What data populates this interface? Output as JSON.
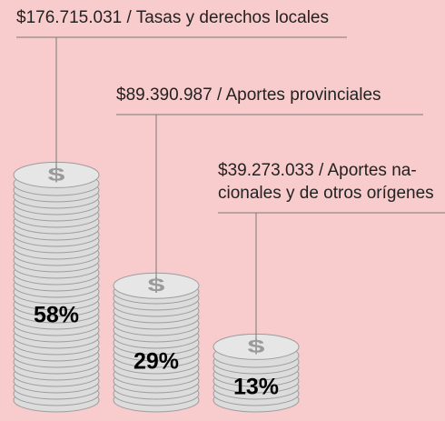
{
  "chart_data": {
    "type": "coin-stack",
    "categories": [
      [
        "$176.715.031  / Tasas y derechos locales"
      ],
      [
        "$89.390.987 / Aportes provinciales"
      ],
      [
        "$39.273.033 /  Aportes na-",
        "cionales y de otros orígenes"
      ]
    ],
    "values": [
      58,
      29,
      13
    ],
    "value_labels": [
      "58%",
      "29%",
      "13%"
    ],
    "coin_symbol": "$",
    "color": "#dcdcdc"
  }
}
